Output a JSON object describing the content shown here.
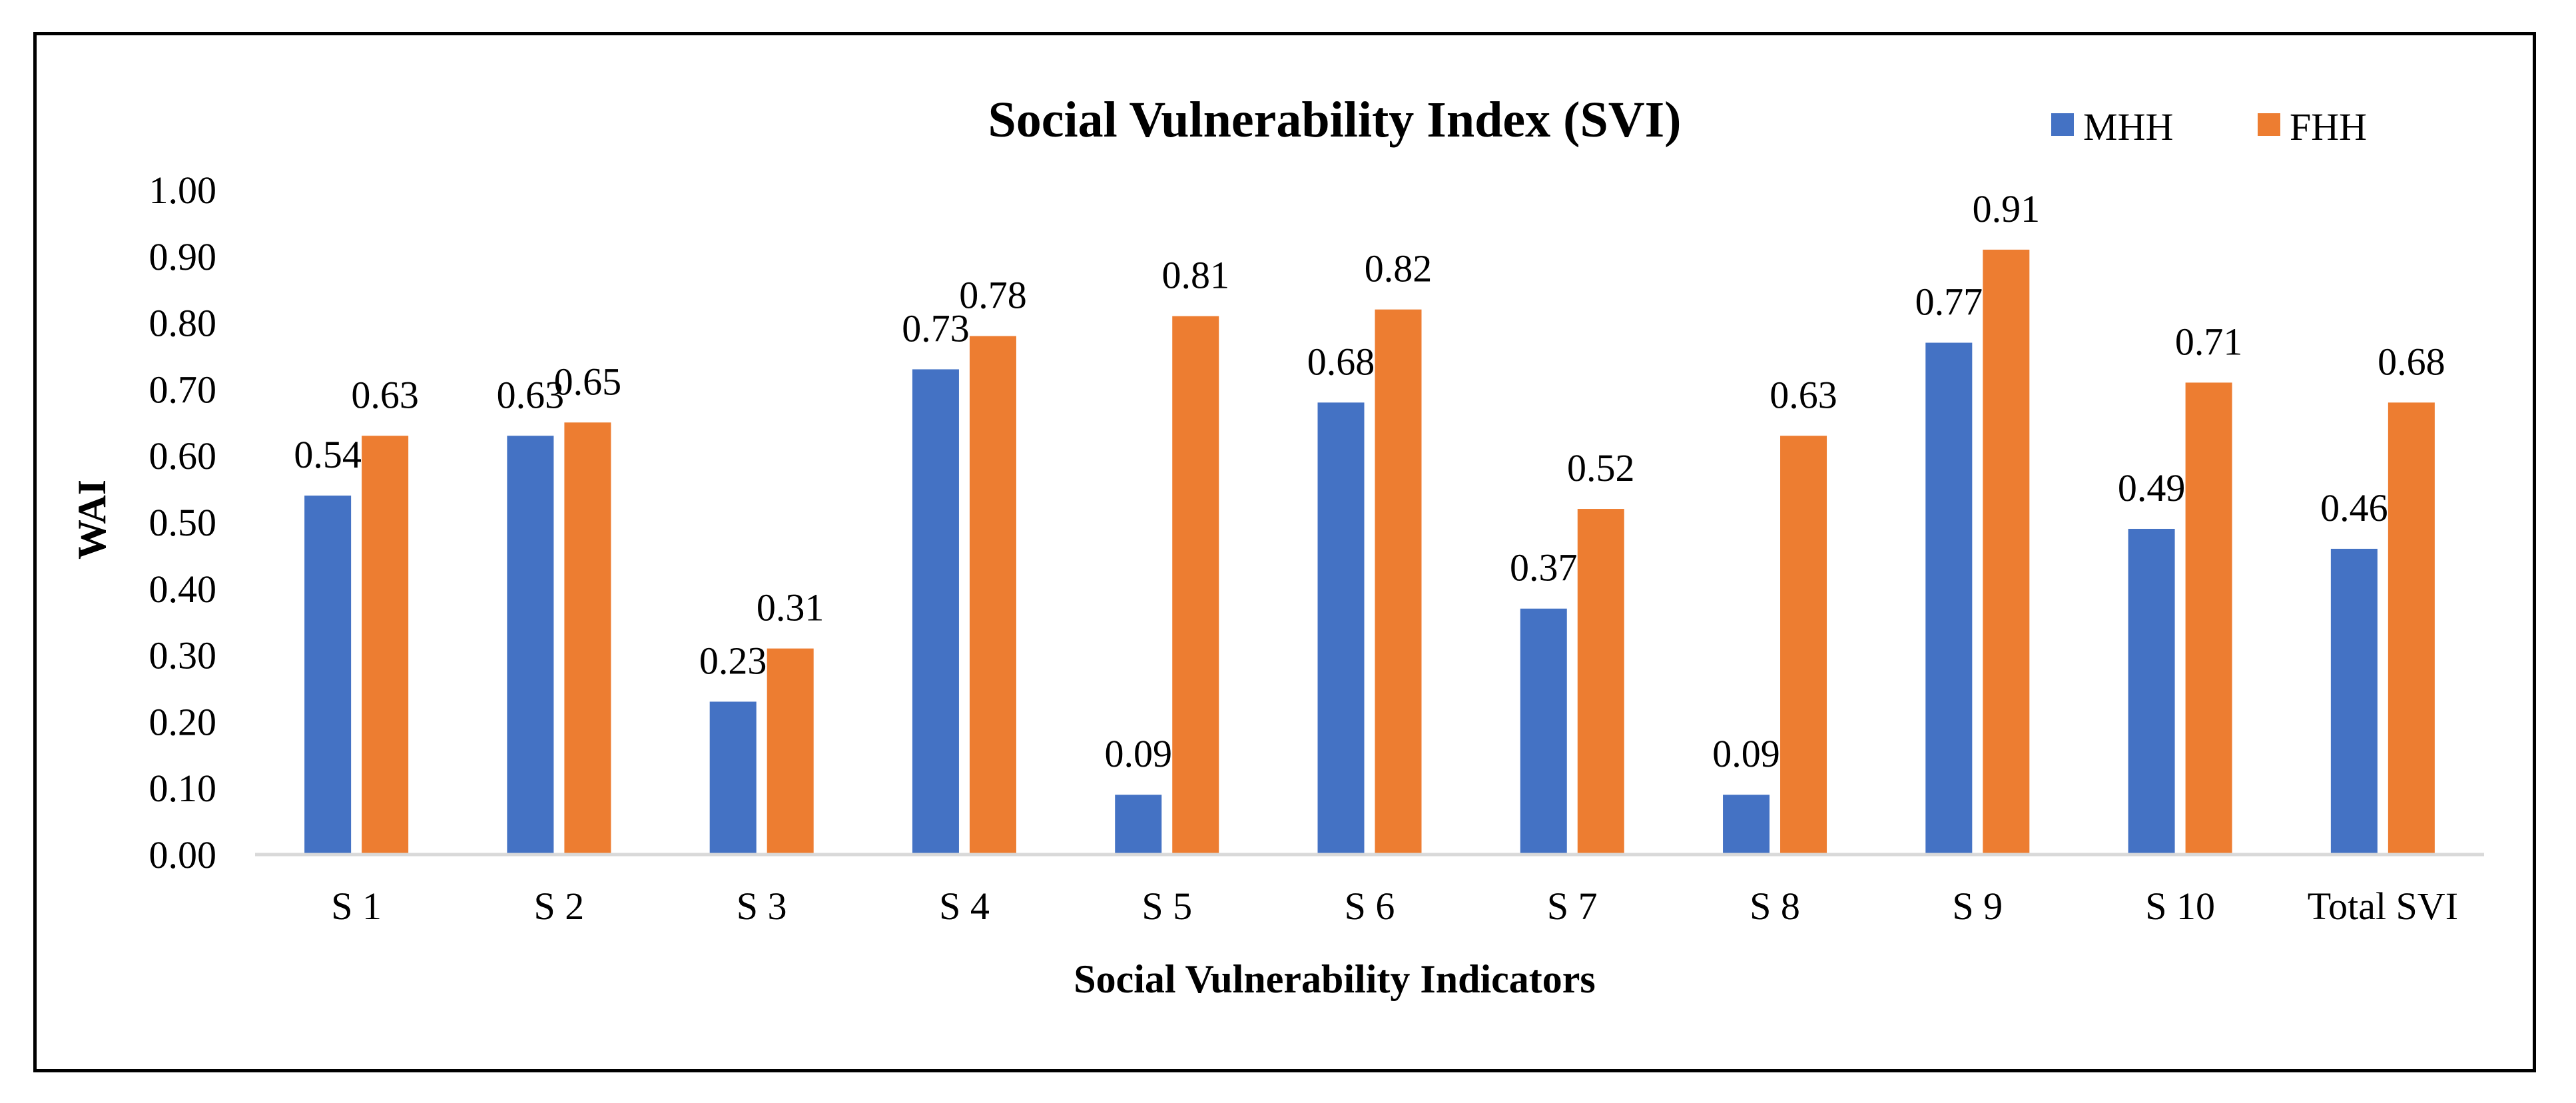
{
  "chart_data": {
    "type": "bar",
    "title": "Social Vulnerability Index (SVI)",
    "xlabel": "Social Vulnerability Indicators",
    "ylabel": "WAI",
    "ylim": [
      0,
      1.0
    ],
    "ytick_step": 0.1,
    "yticks": [
      "0.00",
      "0.10",
      "0.20",
      "0.30",
      "0.40",
      "0.50",
      "0.60",
      "0.70",
      "0.80",
      "0.90",
      "1.00"
    ],
    "categories": [
      "S 1",
      "S 2",
      "S 3",
      "S 4",
      "S 5",
      "S 6",
      "S 7",
      "S 8",
      "S 9",
      "S 10",
      "Total SVI"
    ],
    "series": [
      {
        "name": "MHH",
        "color": "#4472C4",
        "values": [
          0.54,
          0.63,
          0.23,
          0.73,
          0.09,
          0.68,
          0.37,
          0.09,
          0.77,
          0.49,
          0.46
        ],
        "labels": [
          "0.54",
          "0.63",
          "0.23",
          "0.73",
          "0.09",
          "0.68",
          "0.37",
          "0.09",
          "0.77",
          "0.49",
          "0.46"
        ]
      },
      {
        "name": "FHH",
        "color": "#ED7D31",
        "values": [
          0.63,
          0.65,
          0.31,
          0.78,
          0.81,
          0.82,
          0.52,
          0.63,
          0.91,
          0.71,
          0.68
        ],
        "labels": [
          "0.63",
          "0.65",
          "0.31",
          "0.78",
          "0.81",
          "0.82",
          "0.52",
          "0.63",
          "0.91",
          "0.71",
          "0.68"
        ]
      }
    ],
    "legend_position": "top-right",
    "grid": false
  }
}
